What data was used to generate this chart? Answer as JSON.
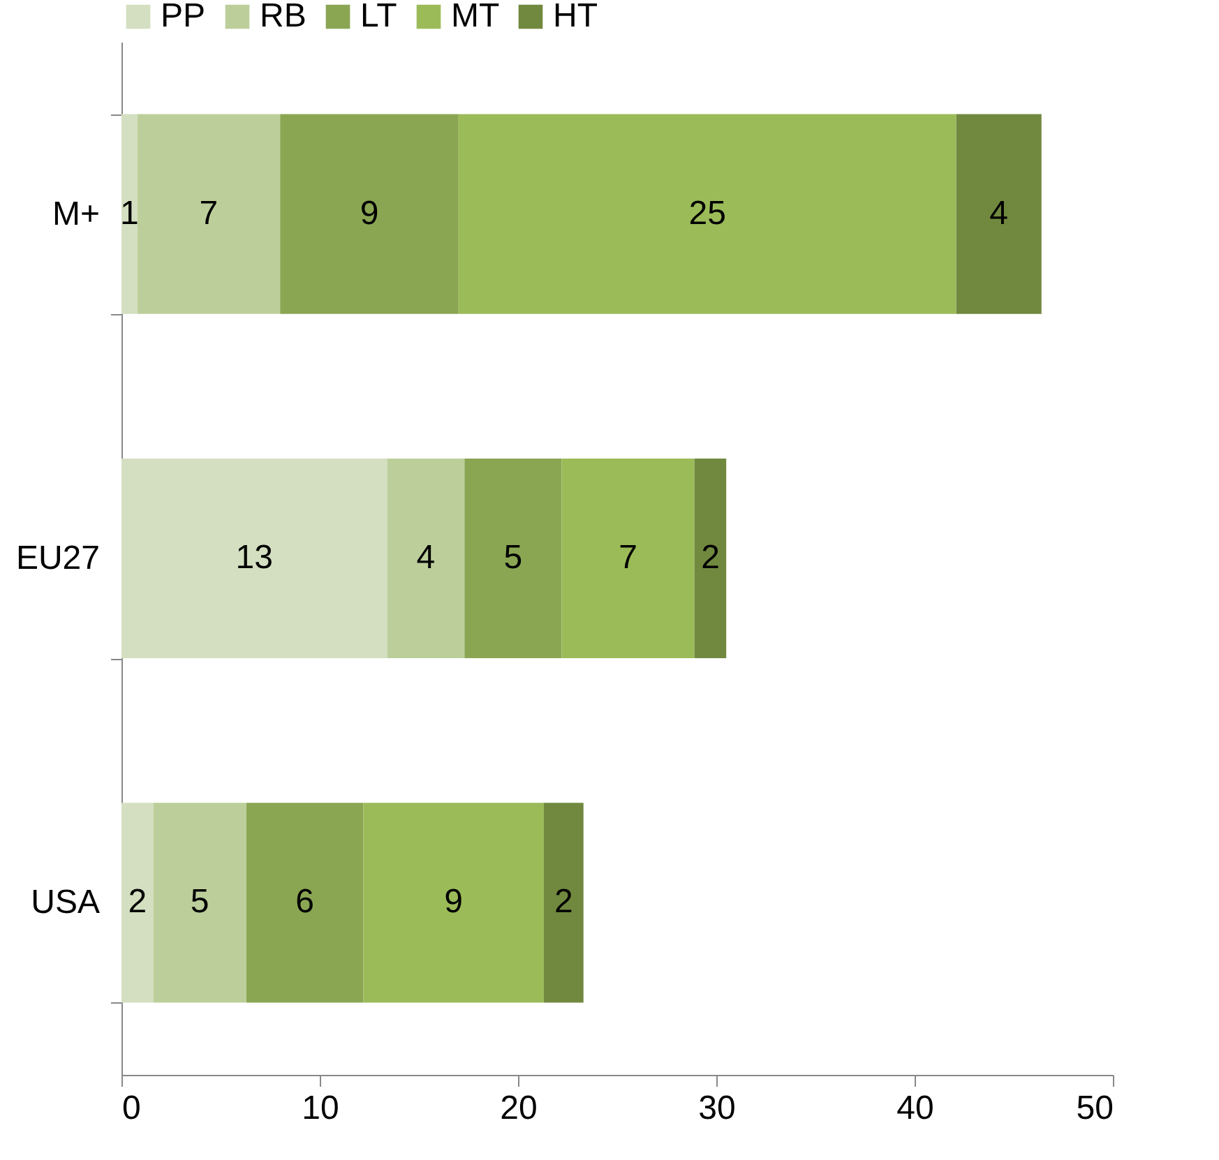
{
  "chart_data": {
    "type": "bar",
    "orientation": "horizontal",
    "stacked": true,
    "categories": [
      "M+",
      "EU27",
      "USA"
    ],
    "series": [
      {
        "name": "PP",
        "color": "#d3dfc0",
        "values": [
          0.8,
          13.4,
          1.6
        ],
        "value_labels": [
          "1",
          "13",
          "2"
        ]
      },
      {
        "name": "RB",
        "color": "#bccf9b",
        "values": [
          7.2,
          3.9,
          4.7
        ],
        "value_labels": [
          "7",
          "4",
          "5"
        ]
      },
      {
        "name": "LT",
        "color": "#8aa653",
        "values": [
          9.0,
          4.9,
          5.9
        ],
        "value_labels": [
          "9",
          "5",
          "6"
        ]
      },
      {
        "name": "MT",
        "color": "#9bbb59",
        "values": [
          25.1,
          6.7,
          9.1
        ],
        "value_labels": [
          "25",
          "7",
          "9"
        ]
      },
      {
        "name": "HT",
        "color": "#71893f",
        "values": [
          4.3,
          1.6,
          2.0
        ],
        "value_labels": [
          "4",
          "2",
          "2"
        ]
      }
    ],
    "xlim": [
      0,
      50
    ],
    "xticks": [
      0,
      10,
      20,
      30,
      40,
      50
    ],
    "grid": false,
    "legend": "top"
  }
}
